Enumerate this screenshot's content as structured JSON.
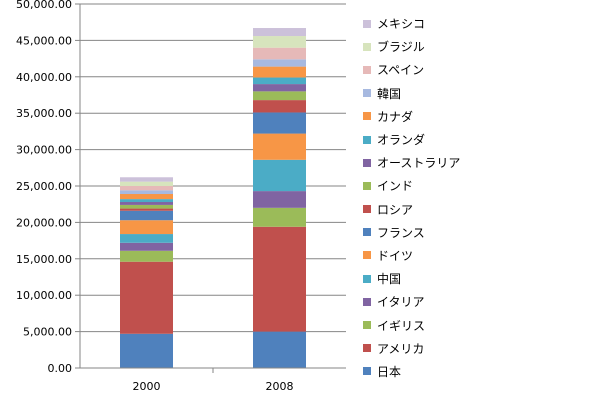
{
  "chart_data": {
    "type": "bar",
    "stacked": true,
    "categories": [
      "2000",
      "2008"
    ],
    "ylim": [
      0,
      50000
    ],
    "yticks": [
      "0.00",
      "5,000.00",
      "10,000.00",
      "15,000.00",
      "20,000.00",
      "25,000.00",
      "30,000.00",
      "35,000.00",
      "40,000.00",
      "45,000.00",
      "50,000.00"
    ],
    "grid": true,
    "legend_position": "right",
    "series": [
      {
        "name": "日本",
        "color": "#4f81bd",
        "values": [
          4700,
          5000
        ]
      },
      {
        "name": "アメリカ",
        "color": "#c0504d",
        "values": [
          9900,
          14400
        ]
      },
      {
        "name": "イギリス",
        "color": "#9bbb59",
        "values": [
          1500,
          2600
        ]
      },
      {
        "name": "イタリア",
        "color": "#8064a2",
        "values": [
          1100,
          2300
        ]
      },
      {
        "name": "中国",
        "color": "#4bacc6",
        "values": [
          1200,
          4300
        ]
      },
      {
        "name": "ドイツ",
        "color": "#f79646",
        "values": [
          1900,
          3600
        ]
      },
      {
        "name": "フランス",
        "color": "#4f81bd",
        "values": [
          1300,
          2900
        ]
      },
      {
        "name": "ロシア",
        "color": "#c0504d",
        "values": [
          300,
          1700
        ]
      },
      {
        "name": "インド",
        "color": "#9bbb59",
        "values": [
          500,
          1200
        ]
      },
      {
        "name": "オーストラリア",
        "color": "#8064a2",
        "values": [
          400,
          1000
        ]
      },
      {
        "name": "オランダ",
        "color": "#4bacc6",
        "values": [
          400,
          900
        ]
      },
      {
        "name": "カナダ",
        "color": "#f79646",
        "values": [
          700,
          1500
        ]
      },
      {
        "name": "韓国",
        "color": "#a7b9e0",
        "values": [
          500,
          1000
        ]
      },
      {
        "name": "スペイン",
        "color": "#e6b9b8",
        "values": [
          600,
          1600
        ]
      },
      {
        "name": "ブラジル",
        "color": "#d7e4bd",
        "values": [
          600,
          1600
        ]
      },
      {
        "name": "メキシコ",
        "color": "#ccc1da",
        "values": [
          600,
          1100
        ]
      }
    ]
  }
}
